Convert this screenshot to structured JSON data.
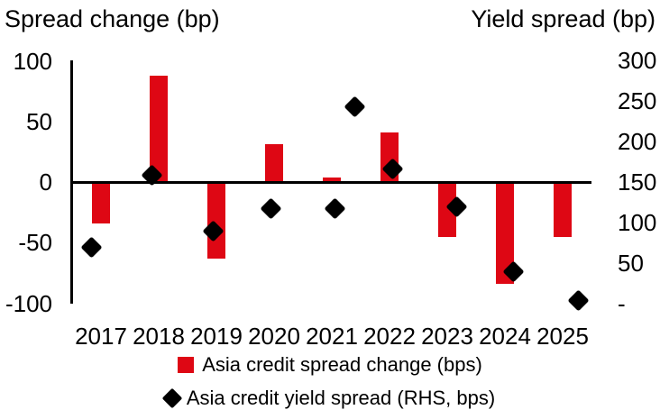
{
  "titles": {
    "left": "Spread change (bp)",
    "right": "Yield spread (bp)"
  },
  "legend": {
    "bar_label": "Asia credit spread change (bps)",
    "diamond_label": "Asia credit yield spread (RHS, bps)"
  },
  "colors": {
    "bar_red": "#de0714",
    "marker_black": "#000000",
    "axis_black": "#000000",
    "background": "#ffffff"
  },
  "left_axis_tick_labels": [
    "100",
    "50",
    "0",
    "-50",
    "-100"
  ],
  "right_axis_tick_labels": [
    "300",
    "250",
    "200",
    "150",
    "100",
    "50",
    "-"
  ],
  "chart_data": {
    "type": "combo",
    "categories": [
      "2017",
      "2018",
      "2019",
      "2020",
      "2021",
      "2022",
      "2023",
      "2024",
      "2025"
    ],
    "series": [
      {
        "name": "Asia credit spread change (bps)",
        "type": "bar",
        "axis": "left",
        "values": [
          -34,
          88,
          -63,
          31,
          4,
          41,
          -45,
          -84,
          -45
        ]
      },
      {
        "name": "Asia credit yield spread (RHS, bps)",
        "type": "scatter",
        "axis": "right",
        "points": [
          {
            "x": 2016.84,
            "value": 70
          },
          {
            "x": 2017.88,
            "value": 158
          },
          {
            "x": 2018.95,
            "value": 90
          },
          {
            "x": 2019.95,
            "value": 117
          },
          {
            "x": 2021.05,
            "value": 117
          },
          {
            "x": 2021.39,
            "value": 243
          },
          {
            "x": 2022.06,
            "value": 166
          },
          {
            "x": 2023.16,
            "value": 120
          },
          {
            "x": 2024.14,
            "value": 40
          },
          {
            "x": 2025.28,
            "value": 4
          }
        ]
      }
    ],
    "left_axis": {
      "title": "Spread change (bp)",
      "range": [
        -100,
        100
      ],
      "ticks": [
        100,
        50,
        0,
        -50,
        -100
      ]
    },
    "right_axis": {
      "title": "Yield spread (bp)",
      "range": [
        0,
        300
      ],
      "ticks": [
        300,
        250,
        200,
        150,
        100,
        50,
        0
      ]
    },
    "grid": false,
    "legend_position": "bottom"
  }
}
